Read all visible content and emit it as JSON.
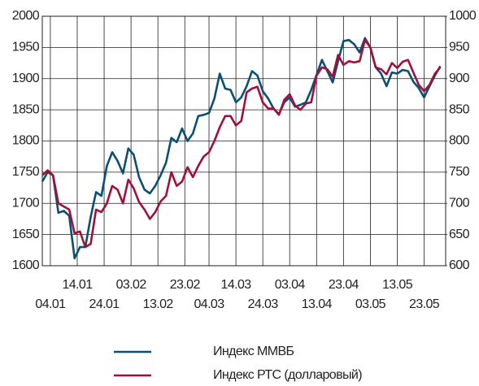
{
  "chart_data": {
    "type": "line",
    "x": [
      "01.01",
      "03.01",
      "05.01",
      "07.01",
      "09.01",
      "11.01",
      "13.01",
      "15.01",
      "17.01",
      "19.01",
      "21.01",
      "23.01",
      "25.01",
      "27.01",
      "29.01",
      "31.01",
      "02.02",
      "04.02",
      "06.02",
      "08.02",
      "10.02",
      "12.02",
      "14.02",
      "16.02",
      "18.02",
      "20.02",
      "22.02",
      "24.02",
      "26.02",
      "28.02",
      "02.03",
      "04.03",
      "06.03",
      "08.03",
      "10.03",
      "12.03",
      "14.03",
      "16.03",
      "18.03",
      "20.03",
      "22.03",
      "24.03",
      "26.03",
      "28.03",
      "30.03",
      "01.04",
      "03.04",
      "05.04",
      "07.04",
      "09.04",
      "11.04",
      "13.04",
      "15.04",
      "17.04",
      "19.04",
      "21.04",
      "23.04",
      "25.04",
      "27.04",
      "29.04",
      "01.05",
      "03.05",
      "05.05",
      "07.05",
      "09.05",
      "11.05",
      "13.05",
      "15.05",
      "17.05",
      "19.05",
      "21.05",
      "23.05",
      "25.05",
      "27.05",
      "29.05"
    ],
    "series": [
      {
        "name": "Индекс ММВБ",
        "color": "#0b4f73",
        "axis": "y",
        "values": [
          1735,
          1750,
          1745,
          1685,
          1688,
          1680,
          1612,
          1630,
          1630,
          1678,
          1718,
          1712,
          1760,
          1782,
          1768,
          1748,
          1788,
          1778,
          1742,
          1722,
          1716,
          1728,
          1745,
          1765,
          1805,
          1798,
          1820,
          1800,
          1812,
          1840,
          1842,
          1845,
          1868,
          1908,
          1884,
          1882,
          1862,
          1870,
          1888,
          1912,
          1905,
          1880,
          1868,
          1852,
          1843,
          1862,
          1870,
          1855,
          1858,
          1862,
          1882,
          1906,
          1930,
          1912,
          1894,
          1928,
          1960,
          1962,
          1955,
          1942,
          1965,
          1950,
          1918,
          1908,
          1888,
          1910,
          1908,
          1914,
          1912,
          1895,
          1885,
          1870,
          1888,
          1905,
          1920
        ]
      },
      {
        "name": "Индекс РТС (долларовый)",
        "color": "#a0103c",
        "axis": "y2",
        "values": [
          745,
          753,
          745,
          700,
          695,
          690,
          652,
          655,
          630,
          635,
          690,
          686,
          700,
          728,
          722,
          700,
          738,
          724,
          702,
          690,
          675,
          686,
          703,
          712,
          750,
          728,
          735,
          758,
          742,
          760,
          775,
          782,
          800,
          822,
          840,
          840,
          825,
          832,
          878,
          884,
          887,
          862,
          852,
          852,
          842,
          866,
          875,
          857,
          850,
          860,
          862,
          905,
          918,
          915,
          903,
          938,
          922,
          928,
          926,
          928,
          962,
          950,
          918,
          915,
          907,
          925,
          917,
          927,
          930,
          910,
          890,
          880,
          890,
          908,
          918
        ]
      }
    ],
    "xlim": [
      "01.01",
      "31.05"
    ],
    "xticks": [
      "04.01",
      "14.01",
      "24.01",
      "03.02",
      "13.02",
      "23.02",
      "04.03",
      "14.03",
      "24.03",
      "03.04",
      "13.04",
      "23.04",
      "03.05",
      "13.05",
      "23.05"
    ],
    "ylim": [
      1600,
      2000
    ],
    "yticks": [
      1600,
      1650,
      1700,
      1750,
      1800,
      1850,
      1900,
      1950,
      2000
    ],
    "y2lim": [
      600,
      1000
    ],
    "y2ticks": [
      600,
      650,
      700,
      750,
      800,
      850,
      900,
      950,
      1000
    ],
    "grid": true
  }
}
